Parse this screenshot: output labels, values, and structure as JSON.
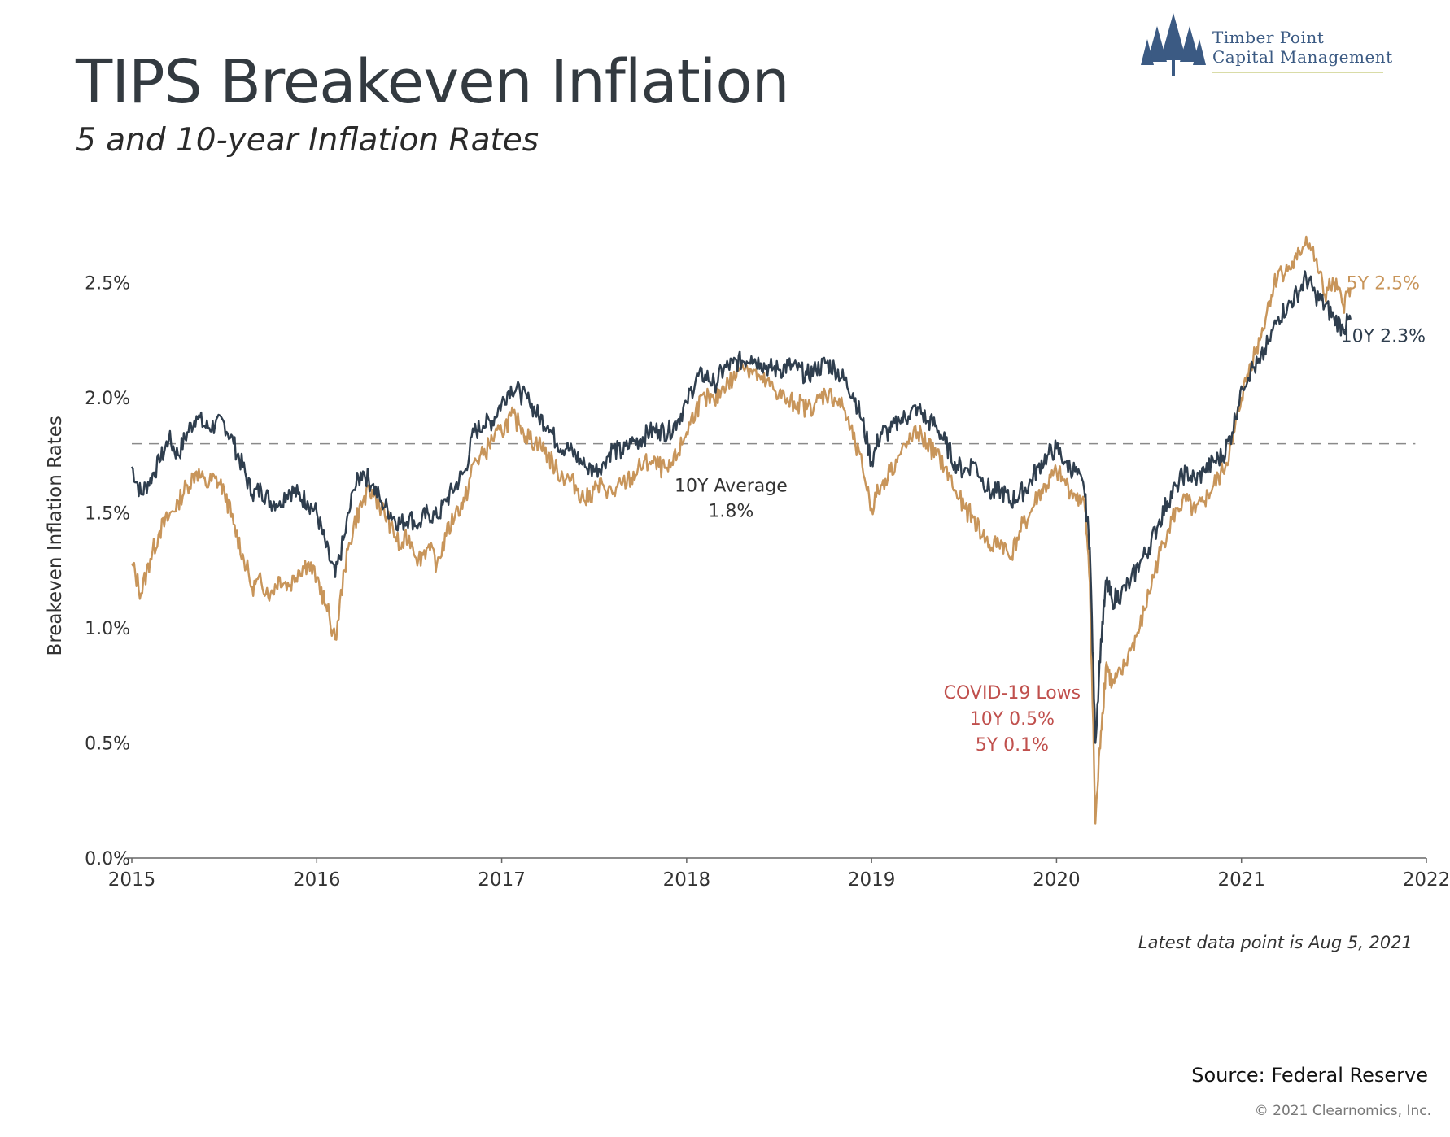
{
  "header": {
    "title": "TIPS Breakeven Inflation",
    "subtitle": "5 and 10-year Inflation Rates"
  },
  "logo": {
    "line1": "Timber Point",
    "line2": "Capital Management",
    "icon": "pine-trees-icon",
    "color": "#3b5a83"
  },
  "footer": {
    "latest": "Latest data point is Aug 5, 2021",
    "source": "Source: Federal Reserve",
    "copyright": "© 2021 Clearnomics, Inc."
  },
  "chart_data": {
    "type": "line",
    "ylabel": "Breakeven Inflation Rates",
    "xlim": [
      2015,
      2022
    ],
    "ylim": [
      0,
      2.8
    ],
    "y_ticks": [
      "0.0%",
      "0.5%",
      "1.0%",
      "1.5%",
      "2.0%",
      "2.5%"
    ],
    "y_tick_values": [
      0,
      0.5,
      1.0,
      1.5,
      2.0,
      2.5
    ],
    "x_ticks": [
      "2015",
      "2016",
      "2017",
      "2018",
      "2019",
      "2020",
      "2021",
      "2022"
    ],
    "x_tick_values": [
      2015,
      2016,
      2017,
      2018,
      2019,
      2020,
      2021,
      2022
    ],
    "grid": false,
    "series": [
      {
        "name": "10Y",
        "color": "#2f3e4e",
        "end_label": "10Y 2.3%",
        "points": [
          [
            2015.0,
            1.7
          ],
          [
            2015.05,
            1.58
          ],
          [
            2015.1,
            1.65
          ],
          [
            2015.15,
            1.72
          ],
          [
            2015.2,
            1.82
          ],
          [
            2015.25,
            1.75
          ],
          [
            2015.3,
            1.85
          ],
          [
            2015.35,
            1.92
          ],
          [
            2015.4,
            1.87
          ],
          [
            2015.45,
            1.88
          ],
          [
            2015.5,
            1.89
          ],
          [
            2015.55,
            1.8
          ],
          [
            2015.6,
            1.7
          ],
          [
            2015.65,
            1.58
          ],
          [
            2015.7,
            1.6
          ],
          [
            2015.75,
            1.55
          ],
          [
            2015.8,
            1.55
          ],
          [
            2015.85,
            1.6
          ],
          [
            2015.9,
            1.58
          ],
          [
            2015.95,
            1.55
          ],
          [
            2016.0,
            1.5
          ],
          [
            2016.05,
            1.35
          ],
          [
            2016.1,
            1.22
          ],
          [
            2016.15,
            1.4
          ],
          [
            2016.2,
            1.6
          ],
          [
            2016.25,
            1.68
          ],
          [
            2016.3,
            1.62
          ],
          [
            2016.35,
            1.55
          ],
          [
            2016.4,
            1.5
          ],
          [
            2016.45,
            1.45
          ],
          [
            2016.5,
            1.48
          ],
          [
            2016.55,
            1.45
          ],
          [
            2016.6,
            1.5
          ],
          [
            2016.65,
            1.48
          ],
          [
            2016.7,
            1.55
          ],
          [
            2016.75,
            1.62
          ],
          [
            2016.8,
            1.68
          ],
          [
            2016.85,
            1.85
          ],
          [
            2016.9,
            1.88
          ],
          [
            2016.95,
            1.9
          ],
          [
            2017.0,
            1.98
          ],
          [
            2017.05,
            2.05
          ],
          [
            2017.1,
            2.02
          ],
          [
            2017.15,
            1.98
          ],
          [
            2017.2,
            1.92
          ],
          [
            2017.25,
            1.88
          ],
          [
            2017.3,
            1.8
          ],
          [
            2017.35,
            1.78
          ],
          [
            2017.4,
            1.75
          ],
          [
            2017.45,
            1.7
          ],
          [
            2017.5,
            1.68
          ],
          [
            2017.55,
            1.72
          ],
          [
            2017.6,
            1.78
          ],
          [
            2017.65,
            1.76
          ],
          [
            2017.7,
            1.8
          ],
          [
            2017.75,
            1.82
          ],
          [
            2017.8,
            1.85
          ],
          [
            2017.85,
            1.86
          ],
          [
            2017.9,
            1.85
          ],
          [
            2017.95,
            1.9
          ],
          [
            2018.0,
            1.98
          ],
          [
            2018.05,
            2.08
          ],
          [
            2018.1,
            2.1
          ],
          [
            2018.15,
            2.06
          ],
          [
            2018.2,
            2.12
          ],
          [
            2018.25,
            2.15
          ],
          [
            2018.3,
            2.16
          ],
          [
            2018.35,
            2.18
          ],
          [
            2018.4,
            2.15
          ],
          [
            2018.45,
            2.13
          ],
          [
            2018.5,
            2.12
          ],
          [
            2018.55,
            2.14
          ],
          [
            2018.6,
            2.12
          ],
          [
            2018.65,
            2.1
          ],
          [
            2018.7,
            2.12
          ],
          [
            2018.75,
            2.15
          ],
          [
            2018.8,
            2.13
          ],
          [
            2018.85,
            2.08
          ],
          [
            2018.9,
            2.02
          ],
          [
            2018.95,
            1.9
          ],
          [
            2019.0,
            1.72
          ],
          [
            2019.05,
            1.85
          ],
          [
            2019.1,
            1.85
          ],
          [
            2019.15,
            1.9
          ],
          [
            2019.2,
            1.92
          ],
          [
            2019.25,
            1.96
          ],
          [
            2019.3,
            1.9
          ],
          [
            2019.35,
            1.88
          ],
          [
            2019.4,
            1.8
          ],
          [
            2019.45,
            1.72
          ],
          [
            2019.5,
            1.68
          ],
          [
            2019.55,
            1.72
          ],
          [
            2019.6,
            1.65
          ],
          [
            2019.65,
            1.58
          ],
          [
            2019.7,
            1.6
          ],
          [
            2019.75,
            1.55
          ],
          [
            2019.8,
            1.58
          ],
          [
            2019.85,
            1.62
          ],
          [
            2019.9,
            1.7
          ],
          [
            2019.95,
            1.75
          ],
          [
            2020.0,
            1.78
          ],
          [
            2020.05,
            1.72
          ],
          [
            2020.1,
            1.68
          ],
          [
            2020.15,
            1.6
          ],
          [
            2020.18,
            1.35
          ],
          [
            2020.21,
            0.5
          ],
          [
            2020.24,
            0.95
          ],
          [
            2020.27,
            1.2
          ],
          [
            2020.3,
            1.12
          ],
          [
            2020.35,
            1.15
          ],
          [
            2020.4,
            1.2
          ],
          [
            2020.45,
            1.28
          ],
          [
            2020.5,
            1.35
          ],
          [
            2020.55,
            1.45
          ],
          [
            2020.6,
            1.55
          ],
          [
            2020.65,
            1.62
          ],
          [
            2020.7,
            1.68
          ],
          [
            2020.75,
            1.64
          ],
          [
            2020.8,
            1.68
          ],
          [
            2020.85,
            1.72
          ],
          [
            2020.9,
            1.75
          ],
          [
            2020.95,
            1.85
          ],
          [
            2021.0,
            2.05
          ],
          [
            2021.05,
            2.12
          ],
          [
            2021.1,
            2.15
          ],
          [
            2021.15,
            2.25
          ],
          [
            2021.2,
            2.35
          ],
          [
            2021.25,
            2.4
          ],
          [
            2021.3,
            2.45
          ],
          [
            2021.35,
            2.52
          ],
          [
            2021.4,
            2.45
          ],
          [
            2021.45,
            2.4
          ],
          [
            2021.5,
            2.35
          ],
          [
            2021.55,
            2.3
          ],
          [
            2021.59,
            2.34
          ]
        ]
      },
      {
        "name": "5Y",
        "color": "#c8955a",
        "end_label": "5Y 2.5%",
        "points": [
          [
            2015.0,
            1.28
          ],
          [
            2015.05,
            1.15
          ],
          [
            2015.1,
            1.3
          ],
          [
            2015.15,
            1.42
          ],
          [
            2015.2,
            1.48
          ],
          [
            2015.25,
            1.55
          ],
          [
            2015.3,
            1.62
          ],
          [
            2015.35,
            1.68
          ],
          [
            2015.4,
            1.62
          ],
          [
            2015.45,
            1.65
          ],
          [
            2015.5,
            1.6
          ],
          [
            2015.55,
            1.45
          ],
          [
            2015.6,
            1.32
          ],
          [
            2015.65,
            1.18
          ],
          [
            2015.7,
            1.2
          ],
          [
            2015.75,
            1.15
          ],
          [
            2015.8,
            1.22
          ],
          [
            2015.85,
            1.18
          ],
          [
            2015.9,
            1.25
          ],
          [
            2015.95,
            1.28
          ],
          [
            2016.0,
            1.22
          ],
          [
            2016.05,
            1.1
          ],
          [
            2016.1,
            0.95
          ],
          [
            2016.15,
            1.25
          ],
          [
            2016.2,
            1.45
          ],
          [
            2016.25,
            1.55
          ],
          [
            2016.3,
            1.6
          ],
          [
            2016.35,
            1.52
          ],
          [
            2016.4,
            1.45
          ],
          [
            2016.45,
            1.35
          ],
          [
            2016.5,
            1.4
          ],
          [
            2016.55,
            1.3
          ],
          [
            2016.6,
            1.35
          ],
          [
            2016.65,
            1.28
          ],
          [
            2016.7,
            1.4
          ],
          [
            2016.75,
            1.5
          ],
          [
            2016.8,
            1.55
          ],
          [
            2016.85,
            1.72
          ],
          [
            2016.9,
            1.75
          ],
          [
            2016.95,
            1.82
          ],
          [
            2017.0,
            1.85
          ],
          [
            2017.05,
            1.92
          ],
          [
            2017.1,
            1.88
          ],
          [
            2017.15,
            1.82
          ],
          [
            2017.2,
            1.8
          ],
          [
            2017.25,
            1.75
          ],
          [
            2017.3,
            1.68
          ],
          [
            2017.35,
            1.65
          ],
          [
            2017.4,
            1.62
          ],
          [
            2017.45,
            1.55
          ],
          [
            2017.5,
            1.6
          ],
          [
            2017.55,
            1.62
          ],
          [
            2017.6,
            1.58
          ],
          [
            2017.65,
            1.62
          ],
          [
            2017.7,
            1.65
          ],
          [
            2017.75,
            1.7
          ],
          [
            2017.8,
            1.72
          ],
          [
            2017.85,
            1.7
          ],
          [
            2017.9,
            1.68
          ],
          [
            2017.95,
            1.75
          ],
          [
            2018.0,
            1.85
          ],
          [
            2018.05,
            1.95
          ],
          [
            2018.1,
            2.0
          ],
          [
            2018.15,
            1.98
          ],
          [
            2018.2,
            2.05
          ],
          [
            2018.25,
            2.08
          ],
          [
            2018.3,
            2.15
          ],
          [
            2018.35,
            2.12
          ],
          [
            2018.4,
            2.08
          ],
          [
            2018.45,
            2.05
          ],
          [
            2018.5,
            2.02
          ],
          [
            2018.55,
            1.98
          ],
          [
            2018.6,
            1.98
          ],
          [
            2018.65,
            1.95
          ],
          [
            2018.7,
            1.98
          ],
          [
            2018.75,
            2.02
          ],
          [
            2018.8,
            2.0
          ],
          [
            2018.85,
            1.95
          ],
          [
            2018.9,
            1.82
          ],
          [
            2018.95,
            1.7
          ],
          [
            2019.0,
            1.52
          ],
          [
            2019.05,
            1.62
          ],
          [
            2019.1,
            1.68
          ],
          [
            2019.15,
            1.75
          ],
          [
            2019.2,
            1.8
          ],
          [
            2019.25,
            1.85
          ],
          [
            2019.3,
            1.8
          ],
          [
            2019.35,
            1.75
          ],
          [
            2019.4,
            1.7
          ],
          [
            2019.45,
            1.6
          ],
          [
            2019.5,
            1.52
          ],
          [
            2019.55,
            1.48
          ],
          [
            2019.6,
            1.4
          ],
          [
            2019.65,
            1.35
          ],
          [
            2019.7,
            1.38
          ],
          [
            2019.75,
            1.3
          ],
          [
            2019.8,
            1.42
          ],
          [
            2019.85,
            1.48
          ],
          [
            2019.9,
            1.58
          ],
          [
            2019.95,
            1.62
          ],
          [
            2020.0,
            1.68
          ],
          [
            2020.05,
            1.62
          ],
          [
            2020.1,
            1.58
          ],
          [
            2020.15,
            1.55
          ],
          [
            2020.18,
            1.2
          ],
          [
            2020.21,
            0.15
          ],
          [
            2020.24,
            0.55
          ],
          [
            2020.27,
            0.85
          ],
          [
            2020.3,
            0.75
          ],
          [
            2020.35,
            0.8
          ],
          [
            2020.4,
            0.9
          ],
          [
            2020.45,
            1.0
          ],
          [
            2020.5,
            1.15
          ],
          [
            2020.55,
            1.3
          ],
          [
            2020.6,
            1.42
          ],
          [
            2020.65,
            1.52
          ],
          [
            2020.7,
            1.55
          ],
          [
            2020.75,
            1.5
          ],
          [
            2020.8,
            1.55
          ],
          [
            2020.85,
            1.62
          ],
          [
            2020.9,
            1.68
          ],
          [
            2020.95,
            1.8
          ],
          [
            2021.0,
            2.0
          ],
          [
            2021.05,
            2.15
          ],
          [
            2021.1,
            2.25
          ],
          [
            2021.15,
            2.42
          ],
          [
            2021.2,
            2.55
          ],
          [
            2021.25,
            2.55
          ],
          [
            2021.3,
            2.6
          ],
          [
            2021.35,
            2.7
          ],
          [
            2021.4,
            2.6
          ],
          [
            2021.45,
            2.45
          ],
          [
            2021.5,
            2.5
          ],
          [
            2021.55,
            2.4
          ],
          [
            2021.59,
            2.48
          ]
        ]
      }
    ],
    "reference_line": {
      "value": 1.8,
      "style": "dashed",
      "label": "10Y Average",
      "value_label": "1.8%",
      "color": "#8a8a8a"
    },
    "annotations": [
      {
        "lines": [
          "COVID-19 Lows",
          "10Y 0.5%",
          "5Y 0.1%"
        ],
        "color": "#c0504d",
        "x": 2019.76,
        "y": 0.72
      }
    ],
    "axis_color": "#666666"
  }
}
